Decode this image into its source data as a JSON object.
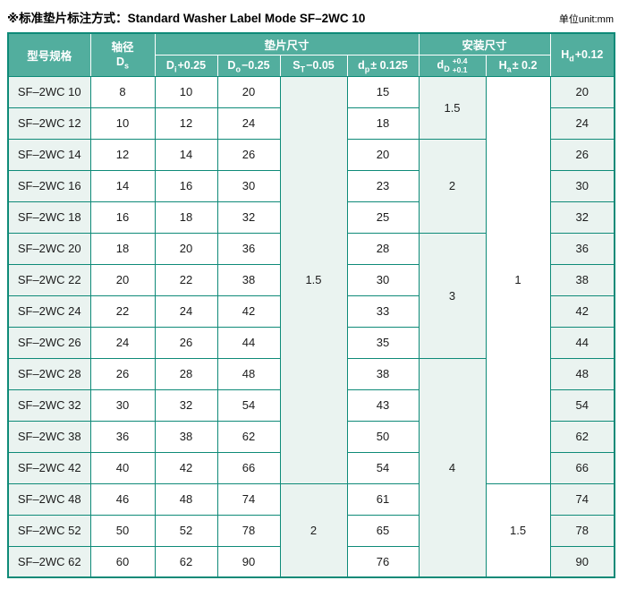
{
  "title": {
    "zh": "※标准垫片标注方式：",
    "en": "Standard Washer Label Mode SF–2WC 10",
    "unit": "单位unit:mm"
  },
  "colors": {
    "header_bg": "#52ae9e",
    "grid_border": "#0e8a78",
    "light_cell_bg": "#eaf3f0"
  },
  "table": {
    "header": {
      "model": "型号规格",
      "shaft_line1": "轴径",
      "shaft_sym": "D",
      "shaft_sub": "s",
      "group_washer": "垫片尺寸",
      "group_install": "安装尺寸",
      "hd_sym": "H",
      "hd_sub": "d",
      "hd_tol": "+0.12",
      "sub_cols": [
        {
          "key": "di",
          "sym": "D",
          "sub": "i",
          "tol": "+0.25"
        },
        {
          "key": "do",
          "sym": "D",
          "sub": "o",
          "tol": "−0.25"
        },
        {
          "key": "st",
          "sym": "S",
          "sub": "T",
          "tol": "−0.05"
        },
        {
          "key": "dp",
          "sym": "d",
          "sub": "p",
          "tol": "± 0.125"
        },
        {
          "key": "dd",
          "sym": "d",
          "sub": "D",
          "stack": [
            "+0.4",
            "+0.1"
          ]
        },
        {
          "key": "ha",
          "sym": "H",
          "sub": "a",
          "tol": "± 0.2"
        }
      ]
    },
    "rows": [
      {
        "model": "SF–2WC 10",
        "ds": "8",
        "di": "10",
        "do": "20",
        "dp": "15",
        "hd": "20"
      },
      {
        "model": "SF–2WC 12",
        "ds": "10",
        "di": "12",
        "do": "24",
        "dp": "18",
        "hd": "24"
      },
      {
        "model": "SF–2WC 14",
        "ds": "12",
        "di": "14",
        "do": "26",
        "dp": "20",
        "hd": "26"
      },
      {
        "model": "SF–2WC 16",
        "ds": "14",
        "di": "16",
        "do": "30",
        "dp": "23",
        "hd": "30"
      },
      {
        "model": "SF–2WC 18",
        "ds": "16",
        "di": "18",
        "do": "32",
        "dp": "25",
        "hd": "32"
      },
      {
        "model": "SF–2WC 20",
        "ds": "18",
        "di": "20",
        "do": "36",
        "dp": "28",
        "hd": "36"
      },
      {
        "model": "SF–2WC 22",
        "ds": "20",
        "di": "22",
        "do": "38",
        "dp": "30",
        "hd": "38"
      },
      {
        "model": "SF–2WC 24",
        "ds": "22",
        "di": "24",
        "do": "42",
        "dp": "33",
        "hd": "42"
      },
      {
        "model": "SF–2WC 26",
        "ds": "24",
        "di": "26",
        "do": "44",
        "dp": "35",
        "hd": "44"
      },
      {
        "model": "SF–2WC 28",
        "ds": "26",
        "di": "28",
        "do": "48",
        "dp": "38",
        "hd": "48"
      },
      {
        "model": "SF–2WC 32",
        "ds": "30",
        "di": "32",
        "do": "54",
        "dp": "43",
        "hd": "54"
      },
      {
        "model": "SF–2WC 38",
        "ds": "36",
        "di": "38",
        "do": "62",
        "dp": "50",
        "hd": "62"
      },
      {
        "model": "SF–2WC 42",
        "ds": "40",
        "di": "42",
        "do": "66",
        "dp": "54",
        "hd": "66"
      },
      {
        "model": "SF–2WC 48",
        "ds": "46",
        "di": "48",
        "do": "74",
        "dp": "61",
        "hd": "74"
      },
      {
        "model": "SF–2WC 52",
        "ds": "50",
        "di": "52",
        "do": "78",
        "dp": "65",
        "hd": "78"
      },
      {
        "model": "SF–2WC 62",
        "ds": "60",
        "di": "62",
        "do": "90",
        "dp": "76",
        "hd": "90"
      }
    ],
    "merges": {
      "st": [
        {
          "row": 0,
          "span": 13,
          "value": "1.5"
        },
        {
          "row": 13,
          "span": 3,
          "value": "2"
        }
      ],
      "dd": [
        {
          "row": 0,
          "span": 2,
          "value": "1.5"
        },
        {
          "row": 2,
          "span": 3,
          "value": "2"
        },
        {
          "row": 5,
          "span": 4,
          "value": "3"
        },
        {
          "row": 9,
          "span": 7,
          "value": "4"
        }
      ],
      "ha": [
        {
          "row": 0,
          "span": 13,
          "value": "1"
        },
        {
          "row": 13,
          "span": 3,
          "value": "1.5"
        }
      ]
    }
  }
}
